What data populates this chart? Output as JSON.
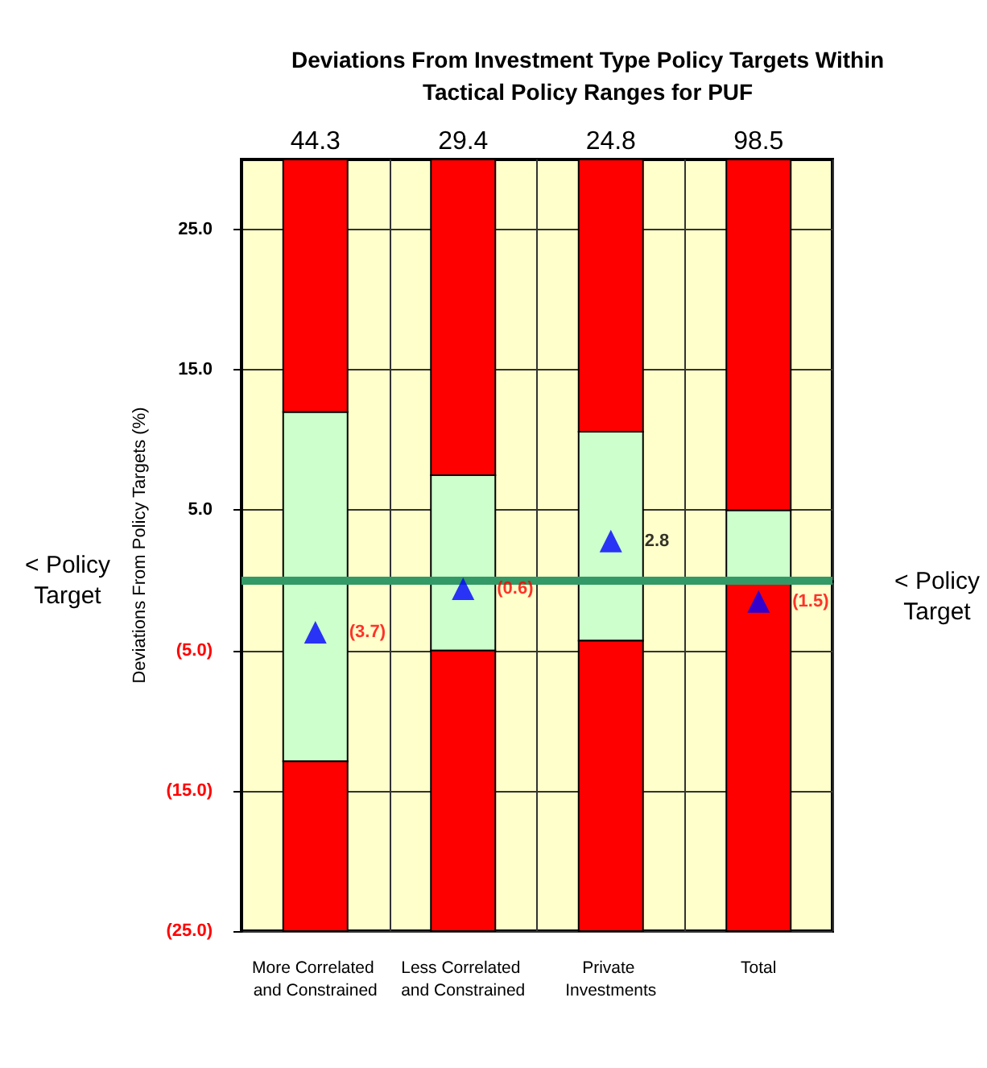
{
  "chart_data": {
    "type": "bar",
    "title": "Deviations From Investment Type Policy Targets Within\nTactical Policy Ranges for PUF",
    "ylabel": "Deviations From Policy Targets (%)",
    "categories": [
      "More Correlated and Constrained",
      "Less Correlated and Constrained",
      "Private Investments",
      "Total"
    ],
    "stacked": true,
    "series": [
      {
        "color": "#ccffcc",
        "values": [
          12,
          7.5,
          10.6,
          5
        ]
      },
      {
        "color": "#ff0000",
        "values": [
          18,
          22.5,
          19.4,
          25
        ]
      },
      {
        "color": "#ccffcc",
        "values": [
          -12.9,
          -5,
          -4.3,
          0
        ]
      },
      {
        "color": "#ff0000",
        "values": [
          -12.1,
          -20,
          -20.7,
          -25
        ]
      },
      {
        "type": "scatter",
        "color": "#0000ff",
        "marker": "triangle",
        "x": [
          "More Correlated and Constrained",
          "Less Correlated and Constrained",
          "Private Investments",
          "Total"
        ],
        "values": [
          -3.7,
          -0.6,
          2.8,
          -1.5
        ],
        "value_labels": [
          "(3.7)",
          "(0.6)",
          "2.8",
          "(1.5)"
        ]
      }
    ],
    "annotations": [
      {
        "text": "44.3",
        "x": "More Correlated and Constrained",
        "y": 30
      },
      {
        "text": "29.4",
        "x": "Less Correlated and Constrained",
        "y": 30
      },
      {
        "text": "24.8",
        "x": "Private Investments",
        "y": 30
      },
      {
        "text": "98.5",
        "x": "Total",
        "y": 30
      }
    ],
    "ref_lines": [
      {
        "axis": "y",
        "value": 0,
        "label": "< Policy\nTarget",
        "color": "#339966"
      }
    ],
    "ylim": [
      -25,
      30
    ],
    "yticks": [
      {
        "value": -25,
        "label": "(25.0)"
      },
      {
        "value": -15,
        "label": "(15.0)"
      },
      {
        "value": -5,
        "label": "(5.0)"
      },
      {
        "value": 5,
        "label": "5.0"
      },
      {
        "value": 15,
        "label": "15.0"
      },
      {
        "value": 25,
        "label": "25.0"
      }
    ],
    "grid": true
  }
}
